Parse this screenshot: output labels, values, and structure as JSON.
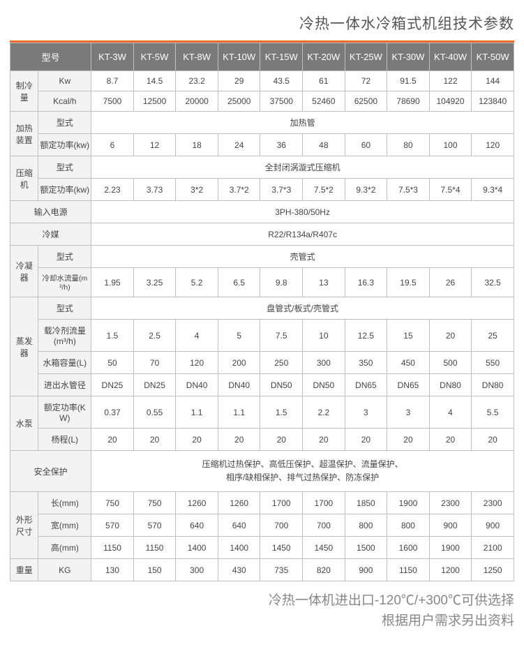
{
  "title": "冷热一体水冷箱式机组技术参数",
  "footer": {
    "line1": "冷热一体机进出口-120℃/+300℃可供选择",
    "line2": "根据用户需求另出资料"
  },
  "headers": {
    "model": "型号",
    "models": [
      "KT-3W",
      "KT-5W",
      "KT-8W",
      "KT-10W",
      "KT-15W",
      "KT-20W",
      "KT-25W",
      "KT-30W",
      "KT-40W",
      "KT-50W"
    ]
  },
  "rows": {
    "cooling": {
      "label": "制冷量",
      "kw_label": "Kw",
      "kw": [
        "8.7",
        "14.5",
        "23.2",
        "29",
        "43.5",
        "61",
        "72",
        "91.5",
        "122",
        "144"
      ],
      "kcal_label": "Kcal/h",
      "kcal": [
        "7500",
        "12500",
        "20000",
        "25000",
        "37500",
        "52460",
        "62500",
        "78690",
        "104920",
        "123840"
      ]
    },
    "heater": {
      "label": "加热装置",
      "type_label": "型式",
      "type_value": "加热管",
      "rated_label": "额定功率(kw)",
      "rated": [
        "6",
        "12",
        "18",
        "24",
        "36",
        "48",
        "60",
        "80",
        "100",
        "120"
      ]
    },
    "compressor": {
      "label": "压缩机",
      "type_label": "型式",
      "type_value": "全封闭涡漩式压缩机",
      "rated_label": "额定功率(kw)",
      "rated": [
        "2.23",
        "3.73",
        "3*2",
        "3.7*2",
        "3.7*3",
        "7.5*2",
        "9.3*2",
        "7.5*3",
        "7.5*4",
        "9.3*4"
      ]
    },
    "power": {
      "label": "输入电源",
      "value": "3PH-380/50Hz"
    },
    "refrigerant": {
      "label": "冷媒",
      "value": "R22/R134a/R407c"
    },
    "condenser": {
      "label": "冷凝器",
      "type_label": "型式",
      "type_value": "壳管式",
      "flow_label": "冷却水流量(m³/h)",
      "flow": [
        "1.95",
        "3.25",
        "5.2",
        "6.5",
        "9.8",
        "13",
        "16.3",
        "19.5",
        "26",
        "32.5"
      ]
    },
    "evaporator": {
      "label": "蒸发器",
      "type_label": "型式",
      "type_value": "盘管式/板式/壳管式",
      "carrier_label": "载冷剂流量\n(m³/h)",
      "carrier": [
        "1.5",
        "2.5",
        "4",
        "5",
        "7.5",
        "10",
        "12.5",
        "15",
        "20",
        "25"
      ],
      "tank_label": "水箱容量(L)",
      "tank": [
        "50",
        "70",
        "120",
        "200",
        "250",
        "300",
        "350",
        "450",
        "500",
        "550"
      ],
      "pipe_label": "进出水管径",
      "pipe": [
        "DN25",
        "DN25",
        "DN40",
        "DN40",
        "DN50",
        "DN50",
        "DN65",
        "DN65",
        "DN80",
        "DN80"
      ]
    },
    "pump": {
      "label": "水泵",
      "rated_label": "额定功率(KW)",
      "rated": [
        "0.37",
        "0.55",
        "1.1",
        "1.1",
        "1.5",
        "2.2",
        "3",
        "3",
        "4",
        "5.5"
      ],
      "head_label": "杨程(L)",
      "head": [
        "20",
        "20",
        "20",
        "20",
        "20",
        "20",
        "20",
        "20",
        "20",
        "20"
      ]
    },
    "safety": {
      "label": "安全保护",
      "value_l1": "压缩机过热保护、高低压保护、超温保护、流量保护、",
      "value_l2": "相序/缺相保护、排气过热保护、防冻保护"
    },
    "dims": {
      "label": "外形\n尺寸",
      "l_label": "长(mm)",
      "l": [
        "750",
        "750",
        "1260",
        "1260",
        "1700",
        "1700",
        "1850",
        "1900",
        "2300",
        "2300"
      ],
      "w_label": "宽(mm)",
      "w": [
        "570",
        "570",
        "640",
        "640",
        "700",
        "700",
        "800",
        "800",
        "900",
        "900"
      ],
      "h_label": "高(mm)",
      "h": [
        "1150",
        "1150",
        "1400",
        "1400",
        "1450",
        "1450",
        "1500",
        "1600",
        "1900",
        "2100"
      ]
    },
    "weight": {
      "label": "重量",
      "unit": "KG",
      "v": [
        "130",
        "150",
        "300",
        "430",
        "735",
        "820",
        "900",
        "1150",
        "1200",
        "1250"
      ]
    }
  },
  "style": {
    "accent": "#ea6a2a",
    "header_bg": "#7a7a7a",
    "header_fg": "#ffffff",
    "label_bg": "#f3f3f3",
    "border": "#bfbfbf",
    "text": "#444444",
    "footer_color": "#888888"
  }
}
